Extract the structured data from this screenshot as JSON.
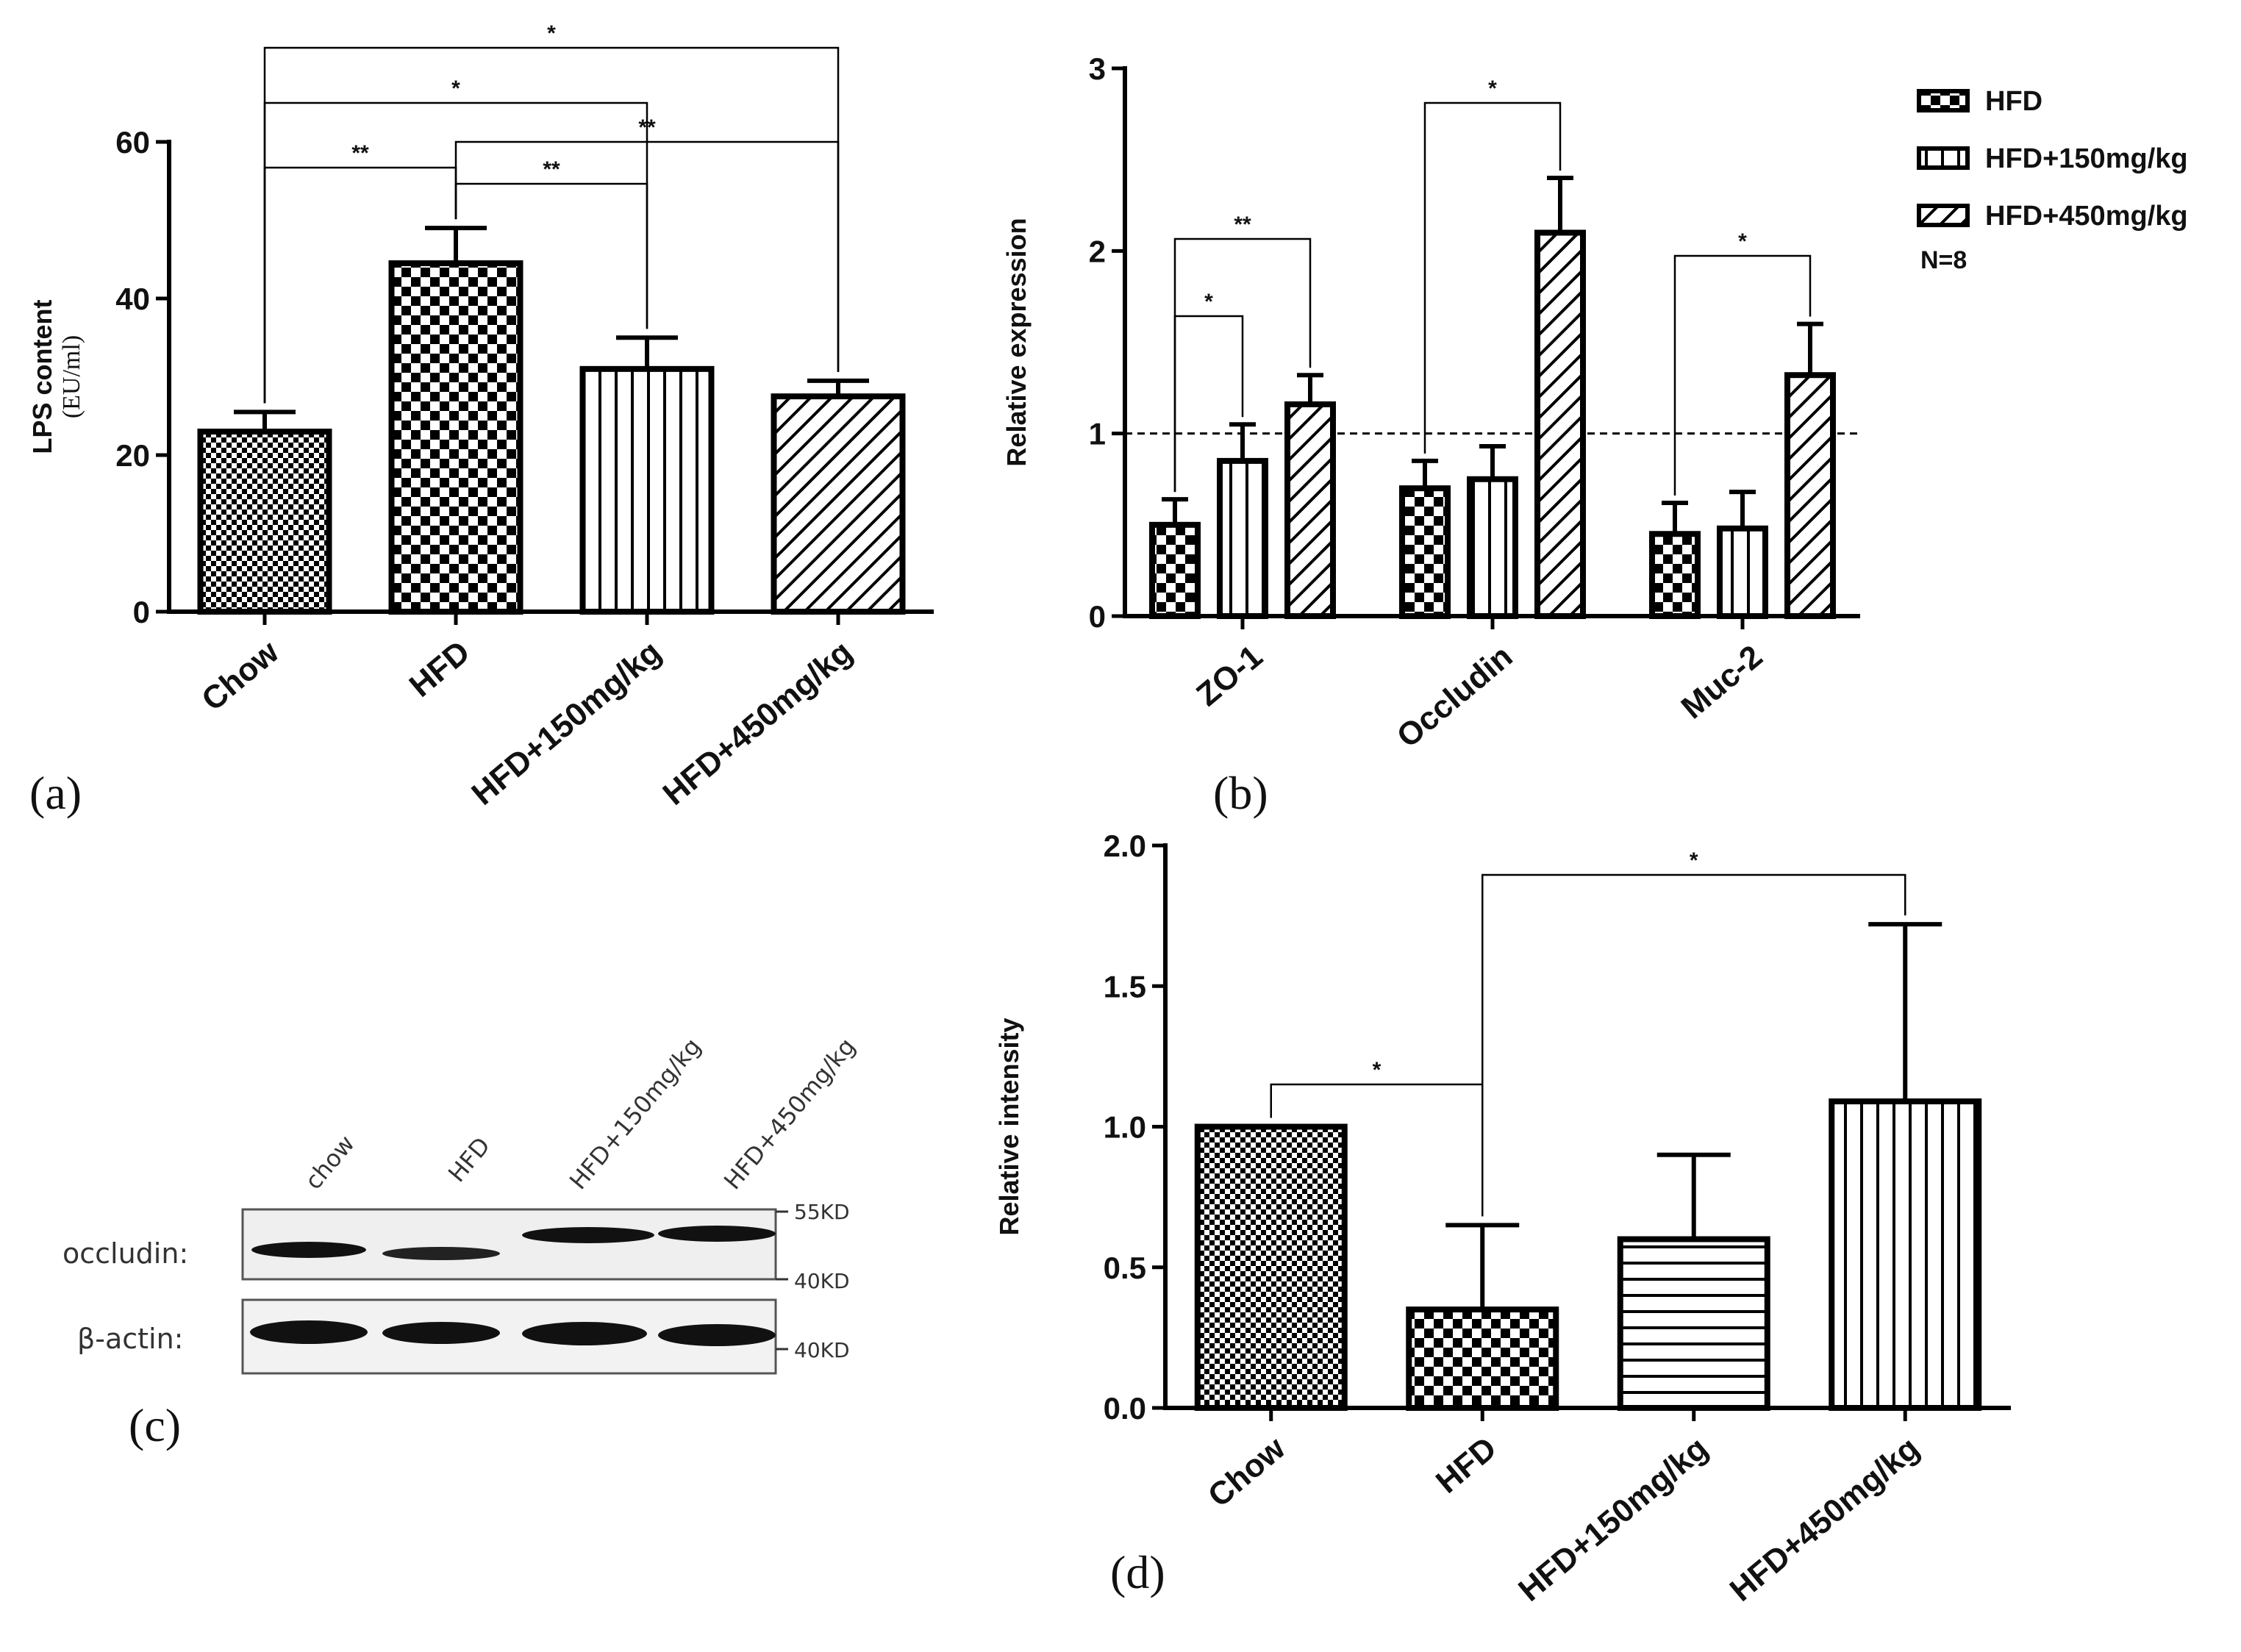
{
  "chart_data": [
    {
      "panel": "a",
      "panel_label": "(a)",
      "type": "bar",
      "ylabel": "LPS content",
      "ylabel_unit": "(EU/ml)",
      "ylim": [
        0,
        60
      ],
      "yticks": [
        0,
        20,
        40,
        60
      ],
      "categories": [
        "Chow",
        "HFD",
        "HFD+150mg/kg",
        "HFD+450mg/kg"
      ],
      "values": [
        23,
        44.5,
        31,
        27.5
      ],
      "errors": [
        2.5,
        4.5,
        4,
        2
      ],
      "patterns": [
        "checker-fine",
        "checker",
        "vertical",
        "diagonal"
      ],
      "significance": [
        {
          "from": 0,
          "to": 1,
          "label": "**"
        },
        {
          "from": 0,
          "to": 2,
          "label": "*"
        },
        {
          "from": 0,
          "to": 3,
          "label": "*"
        },
        {
          "from": 1,
          "to": 2,
          "label": "**"
        },
        {
          "from": 1,
          "to": 3,
          "label": "**"
        }
      ]
    },
    {
      "panel": "b",
      "panel_label": "(b)",
      "type": "bar",
      "ylabel": "Relative expression",
      "ylim": [
        0,
        3
      ],
      "yticks": [
        0,
        1,
        2,
        3
      ],
      "reference_line": 1,
      "categories": [
        "ZO-1",
        "Occludin",
        "Muc-2"
      ],
      "series": [
        {
          "name": "HFD",
          "pattern": "checker",
          "values": [
            0.5,
            0.7,
            0.45
          ],
          "errors": [
            0.14,
            0.15,
            0.17
          ]
        },
        {
          "name": "HFD+150mg/kg",
          "pattern": "vertical",
          "values": [
            0.85,
            0.75,
            0.48
          ],
          "errors": [
            0.2,
            0.18,
            0.2
          ]
        },
        {
          "name": "HFD+450mg/kg",
          "pattern": "diagonal",
          "values": [
            1.16,
            2.1,
            1.32
          ],
          "errors": [
            0.16,
            0.3,
            0.28
          ]
        }
      ],
      "legend_note": "N=8",
      "significance": [
        {
          "group": 0,
          "from": 0,
          "to": 1,
          "label": "*"
        },
        {
          "group": 0,
          "from": 0,
          "to": 2,
          "label": "**"
        },
        {
          "group": 1,
          "from": 0,
          "to": 2,
          "label": "*"
        },
        {
          "group": 2,
          "from": 0,
          "to": 2,
          "label": "*"
        }
      ]
    },
    {
      "panel": "d",
      "panel_label": "(d)",
      "type": "bar",
      "ylabel": "Relative intensity",
      "ylim": [
        0,
        2.0
      ],
      "yticks": [
        "0.0",
        "0.5",
        "1.0",
        "1.5",
        "2.0"
      ],
      "categories": [
        "Chow",
        "HFD",
        "HFD+150mg/kg",
        "HFD+450mg/kg"
      ],
      "values": [
        1.0,
        0.35,
        0.6,
        1.09
      ],
      "errors": [
        0,
        0.3,
        0.3,
        0.63
      ],
      "patterns": [
        "checker-fine",
        "checker",
        "horizontal",
        "vertical"
      ],
      "significance": [
        {
          "from": 0,
          "to": 1,
          "label": "*"
        },
        {
          "from": 1,
          "to": 3,
          "label": "*"
        }
      ]
    }
  ],
  "western_blot": {
    "panel_label": "(c)",
    "lanes": [
      "chow",
      "HFD",
      "HFD+150mg/kg",
      "HFD+450mg/kg"
    ],
    "rows": [
      "occludin:",
      "β-actin:"
    ],
    "markers": [
      "55KD",
      "40KD",
      "40KD"
    ]
  }
}
